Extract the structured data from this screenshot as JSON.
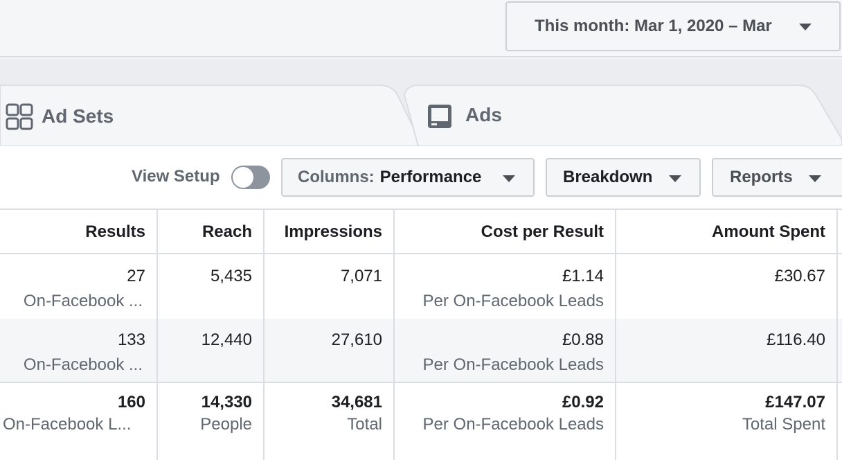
{
  "date_range": {
    "label": "This month: Mar 1, 2020 – Mar"
  },
  "tabs": [
    {
      "label": "Ad Sets",
      "icon": "grid-icon"
    },
    {
      "label": "Ads",
      "icon": "ad-preview-icon"
    }
  ],
  "toolbar": {
    "view_setup": "View Setup",
    "view_setup_on": false,
    "columns_prefix": "Columns:",
    "columns_value": "Performance",
    "breakdown": "Breakdown",
    "reports": "Reports"
  },
  "table": {
    "headers": {
      "results": "Results",
      "reach": "Reach",
      "impressions": "Impressions",
      "cost_per_result": "Cost per Result",
      "amount_spent": "Amount Spent"
    },
    "rows": [
      {
        "results": "27",
        "results_sub": "On-Facebook ...",
        "reach": "5,435",
        "impressions": "7,071",
        "cost_per_result": "£1.14",
        "cost_sub": "Per On-Facebook Leads",
        "amount_spent": "£30.67"
      },
      {
        "results": "133",
        "results_sub": "On-Facebook ...",
        "reach": "12,440",
        "impressions": "27,610",
        "cost_per_result": "£0.88",
        "cost_sub": "Per On-Facebook Leads",
        "amount_spent": "£116.40"
      }
    ],
    "totals": {
      "results": "160",
      "results_sub": "On-Facebook L...",
      "reach": "14,330",
      "reach_sub": "People",
      "impressions": "34,681",
      "impressions_sub": "Total",
      "cost_per_result": "£0.92",
      "cost_sub": "Per On-Facebook Leads",
      "amount_spent": "£147.07",
      "amount_sub": "Total Spent"
    }
  }
}
